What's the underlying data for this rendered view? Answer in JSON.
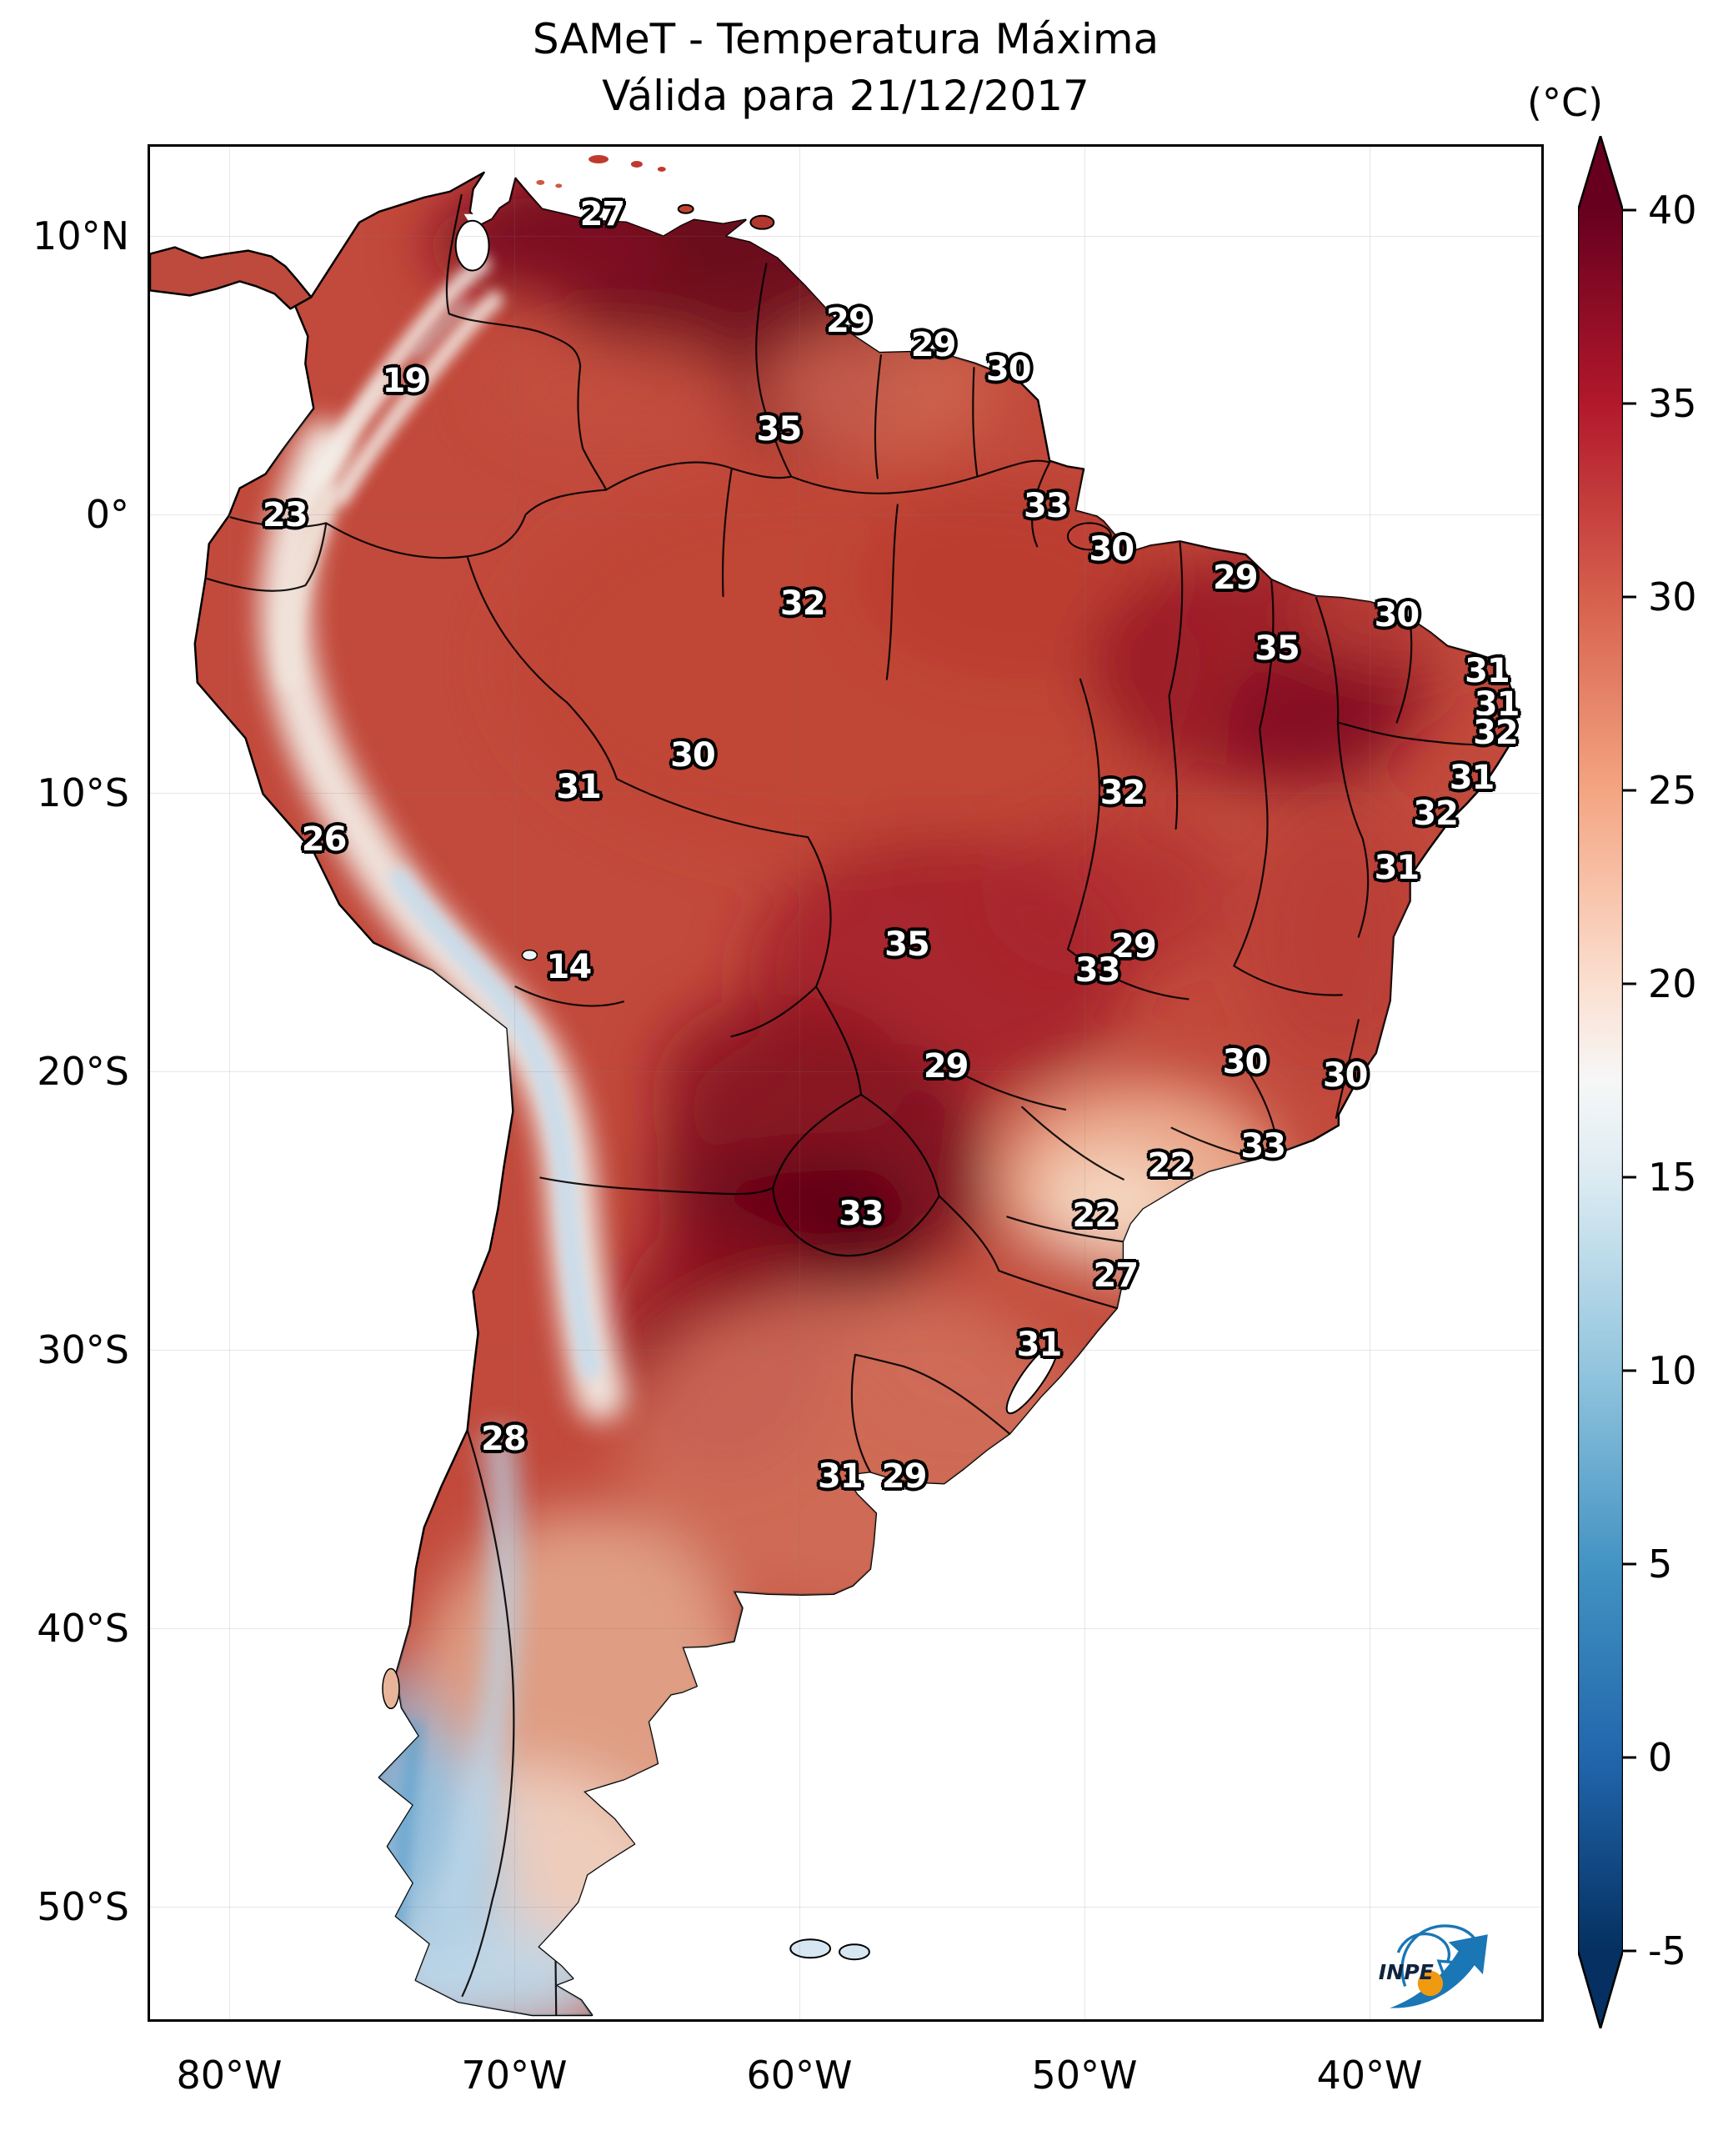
{
  "title": {
    "line1": "SAMeT - Temperatura Máxima",
    "line2": "Válida para 21/12/2017"
  },
  "colorbar_unit": "(°C)",
  "logo": {
    "label": "INPE",
    "arrow_color": "#1a76b5",
    "ball_color": "#f09a12",
    "text_color": "#10243f"
  },
  "chart_data": {
    "type": "heatmap",
    "title": "SAMeT - Temperatura Máxima",
    "subtitle": "Válida para 21/12/2017",
    "unit": "°C",
    "region": "South America",
    "axes": {
      "lat": [
        "10°N",
        "0°",
        "10°S",
        "20°S",
        "30°S",
        "40°S",
        "50°S"
      ],
      "lon": [
        "80°W",
        "70°W",
        "60°W",
        "50°W",
        "40°W"
      ]
    },
    "colorbar": {
      "vmin": -5,
      "vmax": 40,
      "extend": "both",
      "ticks": [
        "40",
        "35",
        "30",
        "25",
        "20",
        "15",
        "10",
        "5",
        "0",
        "-5"
      ],
      "stops": [
        {
          "offset": 0,
          "color": "#67001f"
        },
        {
          "offset": 3.9,
          "color": "#67001f"
        },
        {
          "offset": 14.1,
          "color": "#b2182b"
        },
        {
          "offset": 24.4,
          "color": "#d6604d"
        },
        {
          "offset": 34.6,
          "color": "#f4a582"
        },
        {
          "offset": 44.8,
          "color": "#fbdfd0"
        },
        {
          "offset": 49.9,
          "color": "#f7f7f7"
        },
        {
          "offset": 55.0,
          "color": "#dcebf2"
        },
        {
          "offset": 65.2,
          "color": "#92c5de"
        },
        {
          "offset": 75.5,
          "color": "#4393c3"
        },
        {
          "offset": 85.7,
          "color": "#2166ac"
        },
        {
          "offset": 95.9,
          "color": "#053061"
        },
        {
          "offset": 100,
          "color": "#053061"
        }
      ]
    },
    "points": [
      {
        "value": "27",
        "x": 32.5,
        "y": 3.6
      },
      {
        "value": "29",
        "x": 50.2,
        "y": 9.3
      },
      {
        "value": "29",
        "x": 56.3,
        "y": 10.6
      },
      {
        "value": "30",
        "x": 61.7,
        "y": 11.9
      },
      {
        "value": "19",
        "x": 18.3,
        "y": 12.5
      },
      {
        "value": "35",
        "x": 45.2,
        "y": 15.1
      },
      {
        "value": "23",
        "x": 9.7,
        "y": 19.7
      },
      {
        "value": "33",
        "x": 64.4,
        "y": 19.2
      },
      {
        "value": "30",
        "x": 69.1,
        "y": 21.5
      },
      {
        "value": "29",
        "x": 78.0,
        "y": 23.0
      },
      {
        "value": "32",
        "x": 46.9,
        "y": 24.4
      },
      {
        "value": "30",
        "x": 89.6,
        "y": 25.0
      },
      {
        "value": "35",
        "x": 81.0,
        "y": 26.8
      },
      {
        "value": "31",
        "x": 96.1,
        "y": 28.0
      },
      {
        "value": "31",
        "x": 96.8,
        "y": 29.8
      },
      {
        "value": "32",
        "x": 96.7,
        "y": 31.3
      },
      {
        "value": "30",
        "x": 39.0,
        "y": 32.5
      },
      {
        "value": "31",
        "x": 30.8,
        "y": 34.2
      },
      {
        "value": "32",
        "x": 69.9,
        "y": 34.5
      },
      {
        "value": "31",
        "x": 95.0,
        "y": 33.7
      },
      {
        "value": "32",
        "x": 92.4,
        "y": 35.6
      },
      {
        "value": "26",
        "x": 12.5,
        "y": 37.0
      },
      {
        "value": "31",
        "x": 89.6,
        "y": 38.5
      },
      {
        "value": "14",
        "x": 30.1,
        "y": 43.8
      },
      {
        "value": "35",
        "x": 54.4,
        "y": 42.6
      },
      {
        "value": "29",
        "x": 70.7,
        "y": 42.7
      },
      {
        "value": "33",
        "x": 68.1,
        "y": 44.0
      },
      {
        "value": "29",
        "x": 57.2,
        "y": 49.1
      },
      {
        "value": "30",
        "x": 78.7,
        "y": 48.9
      },
      {
        "value": "30",
        "x": 85.9,
        "y": 49.6
      },
      {
        "value": "22",
        "x": 73.3,
        "y": 54.4
      },
      {
        "value": "33",
        "x": 80.0,
        "y": 53.4
      },
      {
        "value": "33",
        "x": 51.1,
        "y": 57.0
      },
      {
        "value": "22",
        "x": 67.9,
        "y": 57.1
      },
      {
        "value": "27",
        "x": 69.4,
        "y": 60.3
      },
      {
        "value": "31",
        "x": 63.9,
        "y": 64.0
      },
      {
        "value": "28",
        "x": 25.4,
        "y": 69.0
      },
      {
        "value": "31",
        "x": 49.6,
        "y": 71.0
      },
      {
        "value": "29",
        "x": 54.2,
        "y": 71.0
      }
    ]
  }
}
